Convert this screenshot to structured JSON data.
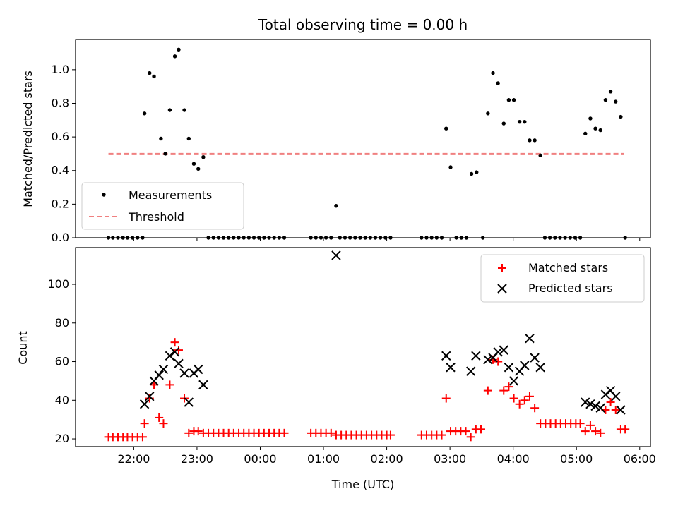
{
  "chart_data": [
    {
      "type": "scatter",
      "title": "Total observing time = 0.00 h",
      "ylabel": "Matched/Predicted stars",
      "xlabel": "",
      "x_unit": "hours UTC since 00:00",
      "xlim": [
        -2.92,
        6.17
      ],
      "ylim": [
        0,
        1.18
      ],
      "yticks": [
        0.0,
        0.2,
        0.4,
        0.6,
        0.8,
        1.0
      ],
      "ytick_labels": [
        "0.0",
        "0.2",
        "0.4",
        "0.6",
        "0.8",
        "1.0"
      ],
      "legend": {
        "placement": "lower-left",
        "entries": [
          "Measurements",
          "Threshold"
        ]
      },
      "colors": {
        "points": "#000000",
        "threshold": "#f08080"
      },
      "threshold": {
        "value": 0.5,
        "x_range": [
          -2.4,
          5.75
        ]
      },
      "series": [
        {
          "name": "Measurements",
          "points": [
            [
              -2.4,
              0.0
            ],
            [
              -2.33,
              0.0
            ],
            [
              -2.25,
              0.0
            ],
            [
              -2.17,
              0.0
            ],
            [
              -2.1,
              0.0
            ],
            [
              -2.02,
              0.0
            ],
            [
              -1.94,
              0.0
            ],
            [
              -1.86,
              0.0
            ],
            [
              -1.83,
              0.74
            ],
            [
              -1.75,
              0.98
            ],
            [
              -1.68,
              0.96
            ],
            [
              -1.57,
              0.59
            ],
            [
              -1.5,
              0.5
            ],
            [
              -1.43,
              0.76
            ],
            [
              -1.35,
              1.08
            ],
            [
              -1.29,
              1.12
            ],
            [
              -1.2,
              0.76
            ],
            [
              -1.13,
              0.59
            ],
            [
              -1.05,
              0.44
            ],
            [
              -0.98,
              0.41
            ],
            [
              -0.9,
              0.48
            ],
            [
              -0.82,
              0.0
            ],
            [
              -0.74,
              0.0
            ],
            [
              -0.66,
              0.0
            ],
            [
              -0.58,
              0.0
            ],
            [
              -0.5,
              0.0
            ],
            [
              -0.42,
              0.0
            ],
            [
              -0.34,
              0.0
            ],
            [
              -0.26,
              0.0
            ],
            [
              -0.18,
              0.0
            ],
            [
              -0.1,
              0.0
            ],
            [
              -0.02,
              0.0
            ],
            [
              0.06,
              0.0
            ],
            [
              0.14,
              0.0
            ],
            [
              0.22,
              0.0
            ],
            [
              0.3,
              0.0
            ],
            [
              0.38,
              0.0
            ],
            [
              0.8,
              0.0
            ],
            [
              0.88,
              0.0
            ],
            [
              0.96,
              0.0
            ],
            [
              1.04,
              0.0
            ],
            [
              1.12,
              0.0
            ],
            [
              1.2,
              0.19
            ],
            [
              1.26,
              0.0
            ],
            [
              1.34,
              0.0
            ],
            [
              1.42,
              0.0
            ],
            [
              1.5,
              0.0
            ],
            [
              1.58,
              0.0
            ],
            [
              1.66,
              0.0
            ],
            [
              1.74,
              0.0
            ],
            [
              1.82,
              0.0
            ],
            [
              1.9,
              0.0
            ],
            [
              1.98,
              0.0
            ],
            [
              2.06,
              0.0
            ],
            [
              2.55,
              0.0
            ],
            [
              2.63,
              0.0
            ],
            [
              2.71,
              0.0
            ],
            [
              2.79,
              0.0
            ],
            [
              2.87,
              0.0
            ],
            [
              2.94,
              0.65
            ],
            [
              3.01,
              0.42
            ],
            [
              3.1,
              0.0
            ],
            [
              3.18,
              0.0
            ],
            [
              3.26,
              0.0
            ],
            [
              3.34,
              0.38
            ],
            [
              3.42,
              0.39
            ],
            [
              3.52,
              0.0
            ],
            [
              3.6,
              0.74
            ],
            [
              3.68,
              0.98
            ],
            [
              3.76,
              0.92
            ],
            [
              3.85,
              0.68
            ],
            [
              3.93,
              0.82
            ],
            [
              4.01,
              0.82
            ],
            [
              4.1,
              0.69
            ],
            [
              4.18,
              0.69
            ],
            [
              4.26,
              0.58
            ],
            [
              4.34,
              0.58
            ],
            [
              4.43,
              0.49
            ],
            [
              4.5,
              0.0
            ],
            [
              4.58,
              0.0
            ],
            [
              4.66,
              0.0
            ],
            [
              4.74,
              0.0
            ],
            [
              4.82,
              0.0
            ],
            [
              4.9,
              0.0
            ],
            [
              4.98,
              0.0
            ],
            [
              5.06,
              0.0
            ],
            [
              5.14,
              0.62
            ],
            [
              5.22,
              0.71
            ],
            [
              5.3,
              0.65
            ],
            [
              5.38,
              0.64
            ],
            [
              5.46,
              0.82
            ],
            [
              5.54,
              0.87
            ],
            [
              5.62,
              0.81
            ],
            [
              5.7,
              0.72
            ],
            [
              5.77,
              0.0
            ]
          ]
        }
      ]
    },
    {
      "type": "scatter",
      "title": "",
      "ylabel": "Count",
      "xlabel": "Time (UTC)",
      "x_unit": "hours UTC since 00:00",
      "xlim": [
        -2.92,
        6.17
      ],
      "ylim": [
        16,
        119
      ],
      "yticks": [
        20,
        40,
        60,
        80,
        100
      ],
      "ytick_labels": [
        "20",
        "40",
        "60",
        "80",
        "100"
      ],
      "xticks": [
        -2,
        -1,
        0,
        1,
        2,
        3,
        4,
        5,
        6
      ],
      "xtick_labels": [
        "22:00",
        "23:00",
        "00:00",
        "01:00",
        "02:00",
        "03:00",
        "04:00",
        "05:00",
        "06:00"
      ],
      "legend": {
        "placement": "upper-right",
        "entries": [
          "Matched stars",
          "Predicted stars"
        ]
      },
      "colors": {
        "matched": "#ff0000",
        "predicted": "#000000"
      },
      "series": [
        {
          "name": "Matched stars",
          "marker": "plus",
          "points": [
            [
              -2.4,
              21
            ],
            [
              -2.33,
              21
            ],
            [
              -2.25,
              21
            ],
            [
              -2.17,
              21
            ],
            [
              -2.1,
              21
            ],
            [
              -2.02,
              21
            ],
            [
              -1.94,
              21
            ],
            [
              -1.86,
              21
            ],
            [
              -1.83,
              28
            ],
            [
              -1.75,
              41
            ],
            [
              -1.68,
              48
            ],
            [
              -1.6,
              31
            ],
            [
              -1.53,
              28
            ],
            [
              -1.43,
              48
            ],
            [
              -1.35,
              70
            ],
            [
              -1.29,
              66
            ],
            [
              -1.2,
              41
            ],
            [
              -1.13,
              23
            ],
            [
              -1.05,
              24
            ],
            [
              -0.98,
              24
            ],
            [
              -0.9,
              23
            ],
            [
              -0.82,
              23
            ],
            [
              -0.74,
              23
            ],
            [
              -0.66,
              23
            ],
            [
              -0.58,
              23
            ],
            [
              -0.5,
              23
            ],
            [
              -0.42,
              23
            ],
            [
              -0.34,
              23
            ],
            [
              -0.26,
              23
            ],
            [
              -0.18,
              23
            ],
            [
              -0.1,
              23
            ],
            [
              -0.02,
              23
            ],
            [
              0.06,
              23
            ],
            [
              0.14,
              23
            ],
            [
              0.22,
              23
            ],
            [
              0.3,
              23
            ],
            [
              0.38,
              23
            ],
            [
              0.8,
              23
            ],
            [
              0.88,
              23
            ],
            [
              0.96,
              23
            ],
            [
              1.04,
              23
            ],
            [
              1.12,
              23
            ],
            [
              1.2,
              22
            ],
            [
              1.28,
              22
            ],
            [
              1.36,
              22
            ],
            [
              1.44,
              22
            ],
            [
              1.52,
              22
            ],
            [
              1.6,
              22
            ],
            [
              1.68,
              22
            ],
            [
              1.76,
              22
            ],
            [
              1.84,
              22
            ],
            [
              1.92,
              22
            ],
            [
              2.0,
              22
            ],
            [
              2.06,
              22
            ],
            [
              2.55,
              22
            ],
            [
              2.63,
              22
            ],
            [
              2.71,
              22
            ],
            [
              2.79,
              22
            ],
            [
              2.87,
              22
            ],
            [
              2.94,
              41
            ],
            [
              3.01,
              24
            ],
            [
              3.09,
              24
            ],
            [
              3.17,
              24
            ],
            [
              3.25,
              24
            ],
            [
              3.33,
              21
            ],
            [
              3.41,
              25
            ],
            [
              3.49,
              25
            ],
            [
              3.6,
              45
            ],
            [
              3.68,
              61
            ],
            [
              3.76,
              60
            ],
            [
              3.85,
              45
            ],
            [
              3.93,
              47
            ],
            [
              4.01,
              41
            ],
            [
              4.1,
              38
            ],
            [
              4.18,
              40
            ],
            [
              4.26,
              42
            ],
            [
              4.34,
              36
            ],
            [
              4.43,
              28
            ],
            [
              4.51,
              28
            ],
            [
              4.59,
              28
            ],
            [
              4.67,
              28
            ],
            [
              4.75,
              28
            ],
            [
              4.83,
              28
            ],
            [
              4.91,
              28
            ],
            [
              4.99,
              28
            ],
            [
              5.06,
              28
            ],
            [
              5.14,
              24
            ],
            [
              5.22,
              27
            ],
            [
              5.3,
              24
            ],
            [
              5.38,
              23
            ],
            [
              5.46,
              35
            ],
            [
              5.54,
              39
            ],
            [
              5.62,
              35
            ],
            [
              5.7,
              25
            ],
            [
              5.77,
              25
            ]
          ]
        },
        {
          "name": "Predicted stars",
          "marker": "x",
          "points": [
            [
              -1.83,
              38
            ],
            [
              -1.75,
              42
            ],
            [
              -1.68,
              50
            ],
            [
              -1.6,
              53
            ],
            [
              -1.53,
              56
            ],
            [
              -1.43,
              63
            ],
            [
              -1.35,
              65
            ],
            [
              -1.29,
              59
            ],
            [
              -1.2,
              54
            ],
            [
              -1.13,
              39
            ],
            [
              -1.05,
              54
            ],
            [
              -0.98,
              56
            ],
            [
              -0.9,
              48
            ],
            [
              1.2,
              115
            ],
            [
              2.94,
              63
            ],
            [
              3.01,
              57
            ],
            [
              3.33,
              55
            ],
            [
              3.41,
              63
            ],
            [
              3.6,
              61
            ],
            [
              3.68,
              62
            ],
            [
              3.76,
              65
            ],
            [
              3.85,
              66
            ],
            [
              3.93,
              57
            ],
            [
              4.01,
              50
            ],
            [
              4.1,
              55
            ],
            [
              4.18,
              58
            ],
            [
              4.26,
              72
            ],
            [
              4.34,
              62
            ],
            [
              4.43,
              57
            ],
            [
              5.14,
              39
            ],
            [
              5.22,
              38
            ],
            [
              5.3,
              37
            ],
            [
              5.38,
              36
            ],
            [
              5.46,
              43
            ],
            [
              5.54,
              45
            ],
            [
              5.62,
              42
            ],
            [
              5.7,
              35
            ]
          ]
        }
      ]
    }
  ]
}
